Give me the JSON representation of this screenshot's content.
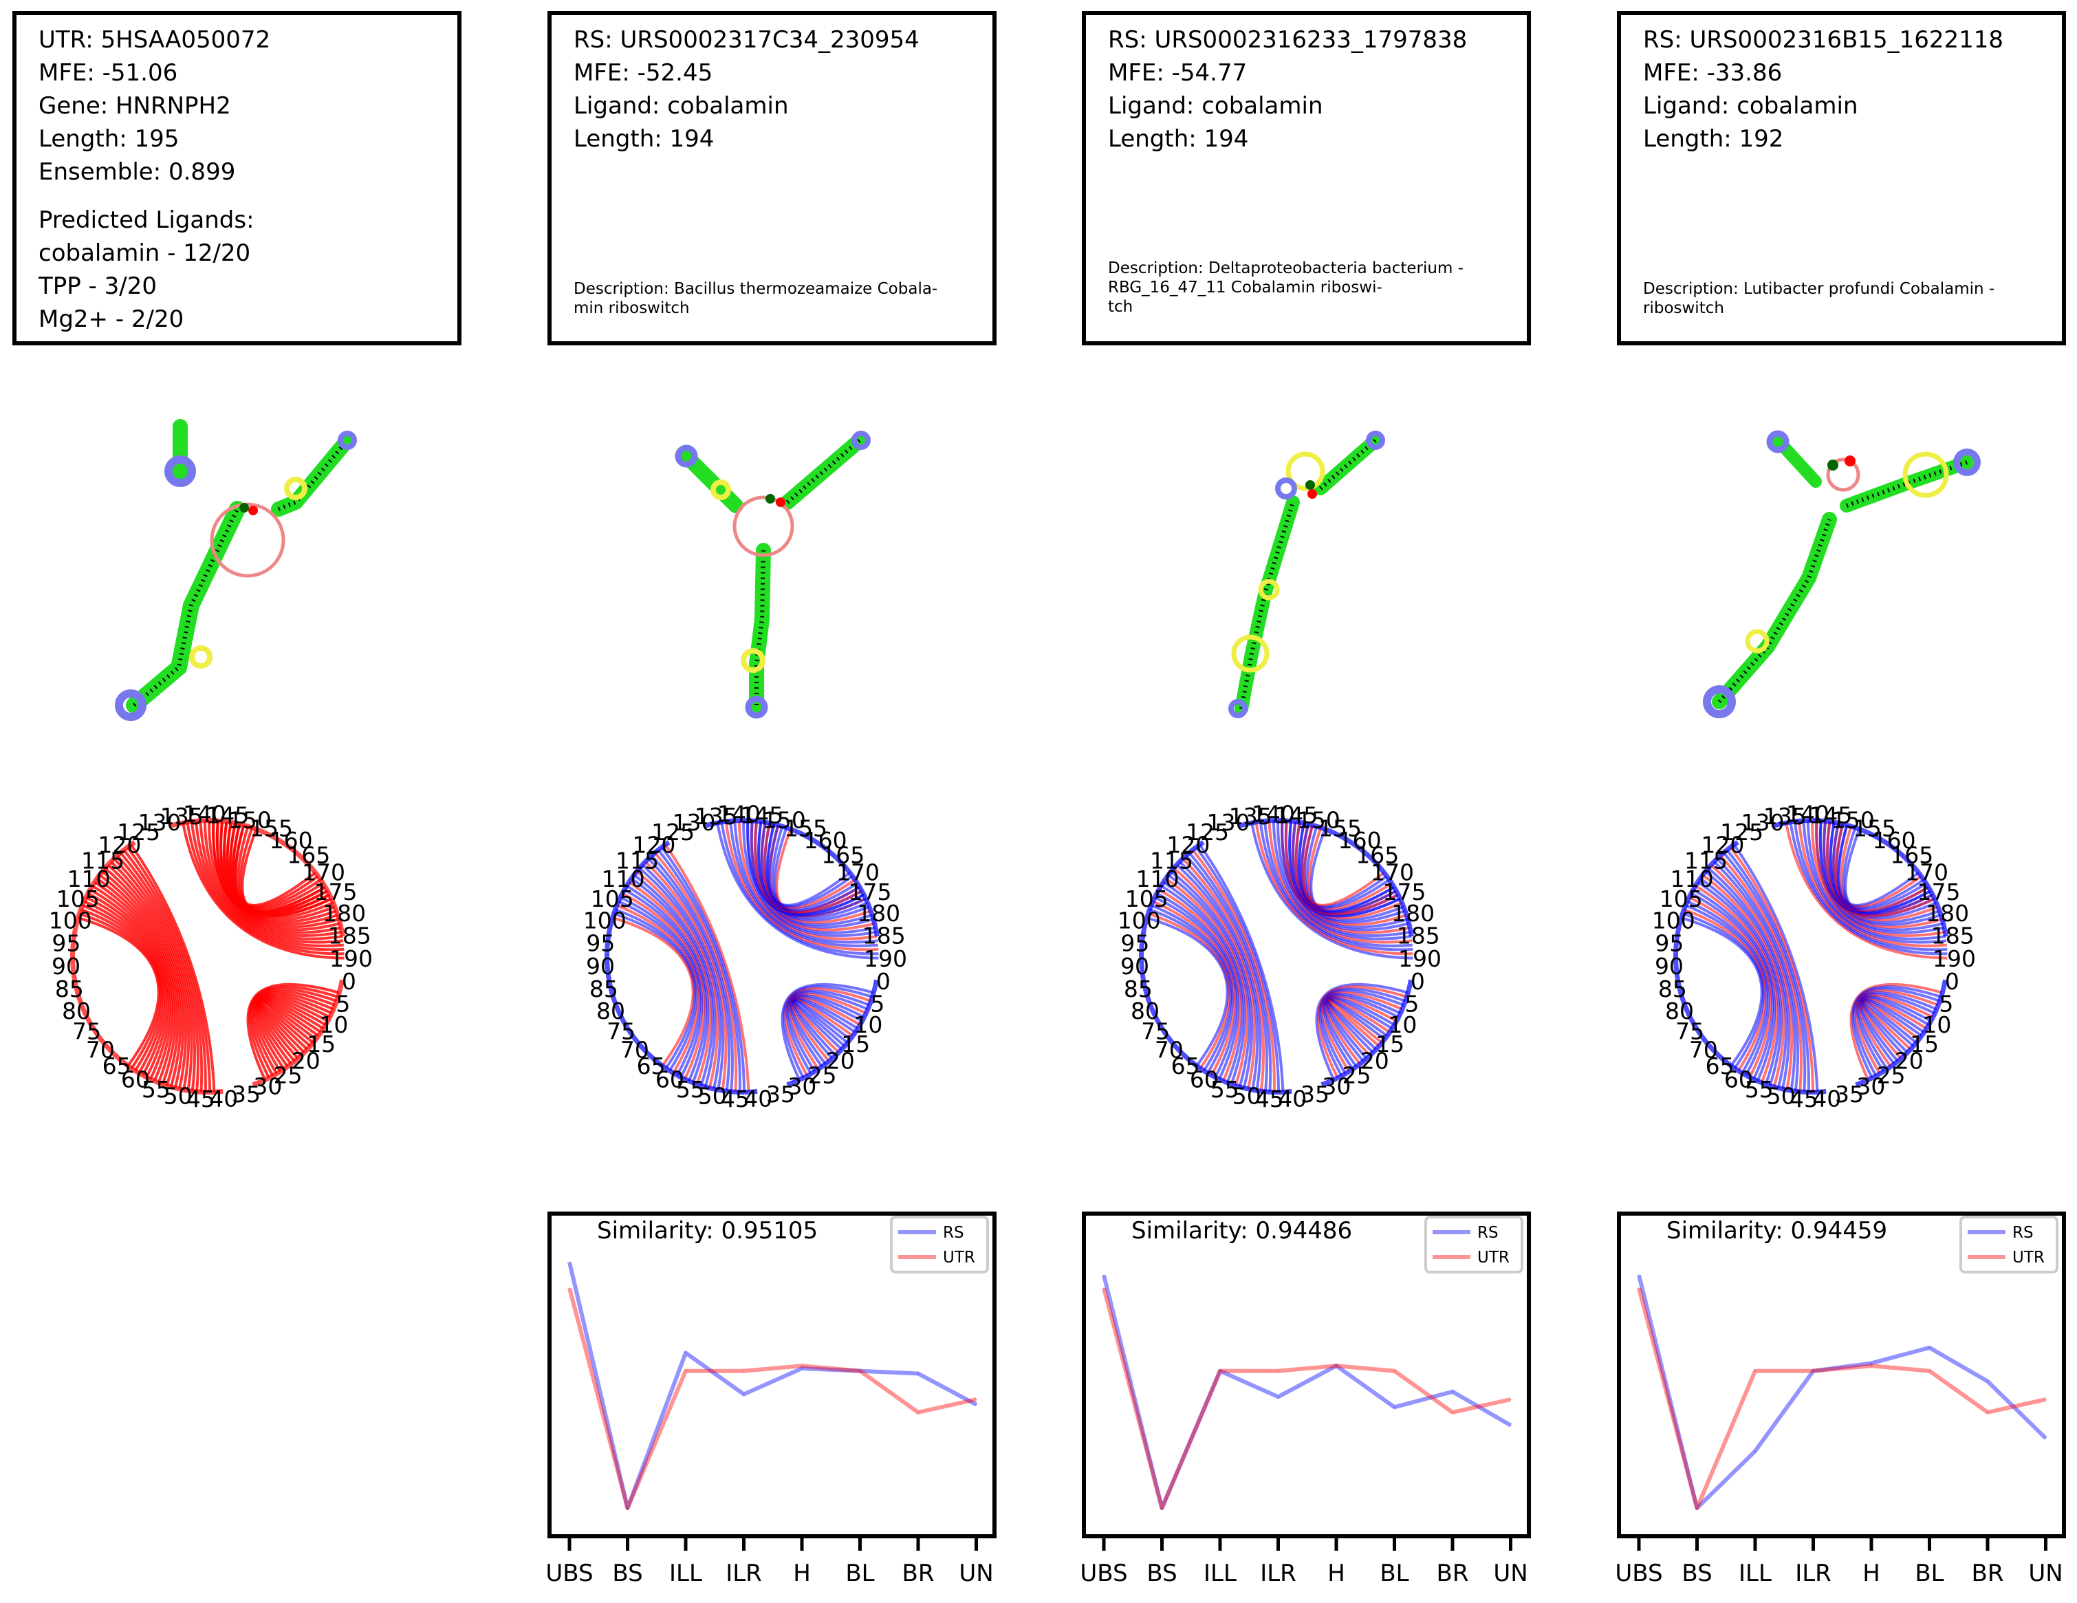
{
  "utr_panel": {
    "line1": "UTR: 5HSAA050072",
    "line2": "MFE: -51.06",
    "line3": "Gene: HNRNPH2",
    "line4": "Length: 195",
    "line5": "Ensemble: 0.899",
    "predicted_title": "Predicted Ligands:",
    "pred1": "cobalamin - 12/20",
    "pred2": "TPP - 3/20",
    "pred3": "Mg2+ - 2/20"
  },
  "rs_panels": [
    {
      "line1": "RS: URS0002317C34_230954",
      "line2": "MFE: -52.45",
      "line3": "Ligand: cobalamin",
      "line4": "Length: 194",
      "desc": "Description: Bacillus thermozeamaize Cobala-\nmin riboswitch"
    },
    {
      "line1": "RS: URS0002316233_1797838",
      "line2": "MFE: -54.77",
      "line3": "Ligand: cobalamin",
      "line4": "Length: 194",
      "desc": "Description: Deltaproteobacteria bacterium -\nRBG_16_47_11 Cobalamin riboswi-\ntch"
    },
    {
      "line1": "RS: URS0002316B15_1622118",
      "line2": "MFE: -33.86",
      "line3": "Ligand: cobalamin",
      "line4": "Length: 192",
      "desc": "Description: Lutibacter profundi Cobalamin -\nriboswitch"
    }
  ],
  "colors": {
    "rs": "#0000ff",
    "utr": "#ff0000",
    "stem": "#22dd22",
    "hairpin": "#7777ee",
    "internal": "#eeee44",
    "multiloop": "#ee8888",
    "binding": "#006400",
    "binding2": "#ff0000"
  },
  "circle_labels": [
    "0",
    "5",
    "10",
    "15",
    "20",
    "25",
    "30",
    "35",
    "40",
    "45",
    "50",
    "55",
    "60",
    "65",
    "70",
    "75",
    "80",
    "85",
    "90",
    "95",
    "100",
    "105",
    "110",
    "115",
    "120",
    "125",
    "130",
    "135",
    "140",
    "145",
    "150",
    "155",
    "160",
    "165",
    "170",
    "175",
    "180",
    "185",
    "190"
  ],
  "chart_data": [
    {
      "type": "line",
      "title": "Similarity: 0.95105",
      "categories": [
        "UBS",
        "BS",
        "ILL",
        "ILR",
        "H",
        "BL",
        "BR",
        "UN"
      ],
      "series": [
        {
          "name": "RS",
          "values": [
            0.95,
            0.0,
            0.6,
            0.44,
            0.54,
            0.53,
            0.52,
            0.4
          ]
        },
        {
          "name": "UTR",
          "values": [
            0.85,
            0.0,
            0.53,
            0.53,
            0.55,
            0.53,
            0.37,
            0.42
          ]
        }
      ]
    },
    {
      "type": "line",
      "title": "Similarity: 0.94486",
      "categories": [
        "UBS",
        "BS",
        "ILL",
        "ILR",
        "H",
        "BL",
        "BR",
        "UN"
      ],
      "series": [
        {
          "name": "RS",
          "values": [
            0.9,
            0.0,
            0.53,
            0.43,
            0.55,
            0.39,
            0.45,
            0.32
          ]
        },
        {
          "name": "UTR",
          "values": [
            0.85,
            0.0,
            0.53,
            0.53,
            0.55,
            0.53,
            0.37,
            0.42
          ]
        }
      ]
    },
    {
      "type": "line",
      "title": "Similarity: 0.94459",
      "categories": [
        "UBS",
        "BS",
        "ILL",
        "ILR",
        "H",
        "BL",
        "BR",
        "UN"
      ],
      "series": [
        {
          "name": "RS",
          "values": [
            0.9,
            0.0,
            0.22,
            0.53,
            0.56,
            0.62,
            0.49,
            0.27
          ]
        },
        {
          "name": "UTR",
          "values": [
            0.85,
            0.0,
            0.53,
            0.53,
            0.55,
            0.53,
            0.37,
            0.42
          ]
        }
      ]
    }
  ]
}
